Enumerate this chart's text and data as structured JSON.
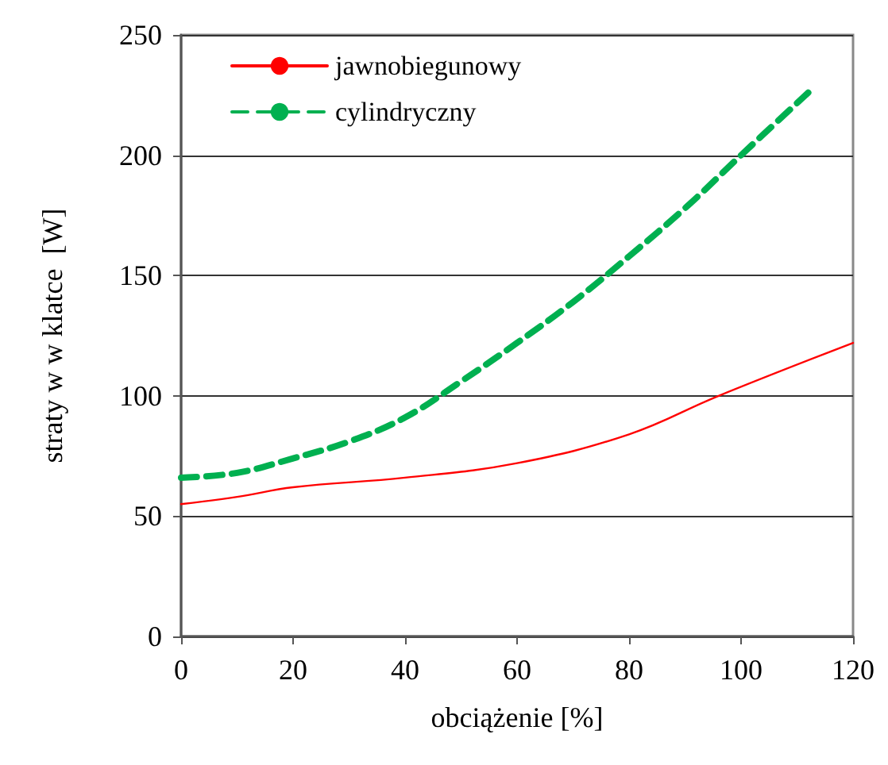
{
  "chart_data": {
    "type": "line",
    "xlabel": "obciążenie [%]",
    "ylabel": "straty w w klatce  [W]",
    "xlim": [
      0,
      120
    ],
    "xticks": [
      0,
      20,
      40,
      60,
      80,
      100,
      120
    ],
    "ylim": [
      0,
      250
    ],
    "yticks": [
      0,
      50,
      100,
      150,
      200,
      250
    ],
    "grid": "y",
    "legend": "top left",
    "marker": "none",
    "series": [
      {
        "name": "jawnobiegunowy",
        "color": "#ff0000",
        "line_style": "solid",
        "x": [
          0,
          10,
          20,
          40,
          60,
          80,
          96,
          120
        ],
        "values": [
          55,
          58,
          62,
          66,
          72,
          84,
          100,
          122
        ]
      },
      {
        "name": "cylindryczny",
        "color": "#00b050",
        "line_style": "dashed",
        "x": [
          0,
          10,
          20,
          30,
          40,
          50,
          60,
          70,
          80,
          90,
          100,
          112
        ],
        "values": [
          66,
          68,
          74,
          81,
          91,
          106,
          122,
          139,
          158,
          178,
          200,
          226
        ]
      }
    ]
  }
}
